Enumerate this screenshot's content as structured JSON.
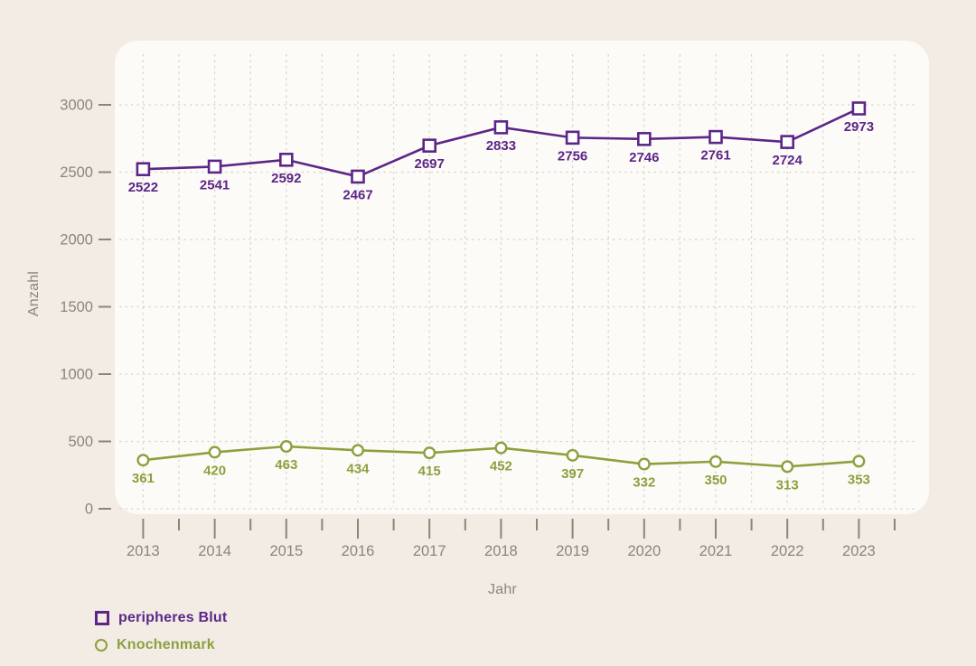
{
  "page": {
    "background_color": "#f2ece5",
    "panel_color": "#fdfbf8",
    "grid_color": "#d9d5cf",
    "axis_color": "#8b857c"
  },
  "chart_data": {
    "type": "line",
    "title": "",
    "xlabel": "Jahr",
    "ylabel": "Anzahl",
    "x": [
      2013,
      2014,
      2015,
      2016,
      2017,
      2018,
      2019,
      2020,
      2021,
      2022,
      2023
    ],
    "series": [
      {
        "name": "peripheres Blut",
        "color": "#5c2687",
        "marker": "square",
        "values": [
          2522,
          2541,
          2592,
          2467,
          2697,
          2833,
          2756,
          2746,
          2761,
          2724,
          2973
        ]
      },
      {
        "name": "Knochenmark",
        "color": "#8da03e",
        "marker": "circle",
        "values": [
          361,
          420,
          463,
          434,
          415,
          452,
          397,
          332,
          350,
          313,
          353
        ]
      }
    ],
    "ylim": [
      0,
      3000
    ],
    "yticks": [
      0,
      500,
      1000,
      1500,
      2000,
      2500,
      3000
    ],
    "grid": true,
    "legend_position": "bottom-left",
    "point_labels_visible": true
  }
}
